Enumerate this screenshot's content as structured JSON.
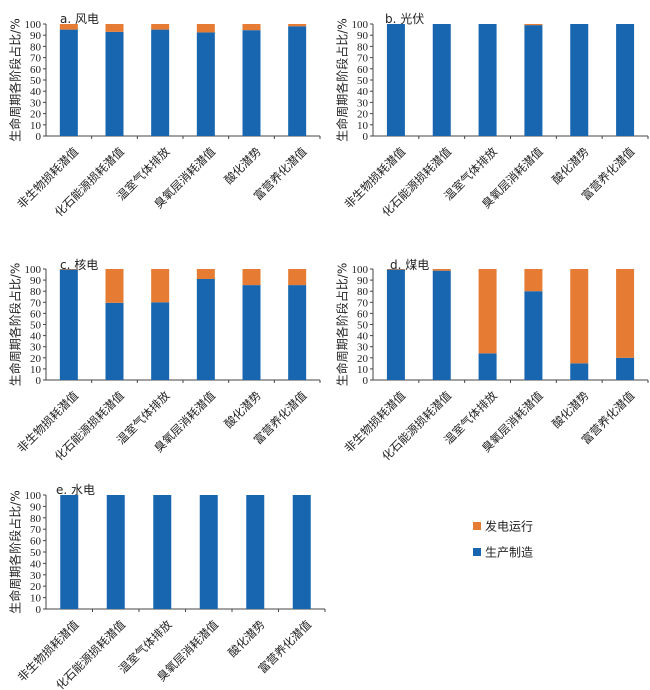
{
  "colors": {
    "production": "#1866b0",
    "operation": "#e67c33",
    "axis": "#444444"
  },
  "legend": [
    {
      "name": "发电运行",
      "color_key": "operation"
    },
    {
      "name": "生产制造",
      "color_key": "production"
    }
  ],
  "chart_data": [
    {
      "type": "bar",
      "stacked": true,
      "title": "a. 风电",
      "ylabel": "生命周期各阶段占比/%",
      "xlabel": "",
      "ylim": [
        0,
        100
      ],
      "yticks": [
        "0",
        "10",
        "20",
        "30",
        "40",
        "50",
        "60",
        "70",
        "80",
        "90",
        "100"
      ],
      "categories": [
        "非生物损耗潜值",
        "化石能源损耗潜值",
        "温室气体排放",
        "臭氧层消耗潜值",
        "酸化潜势",
        "富营养化潜值"
      ],
      "series": [
        {
          "name": "生产制造",
          "values": [
            95,
            93,
            95,
            92.5,
            94.5,
            98
          ]
        },
        {
          "name": "发电运行",
          "values": [
            5,
            7,
            5,
            7.5,
            5.5,
            2
          ]
        }
      ]
    },
    {
      "type": "bar",
      "stacked": true,
      "title": "b. 光伏",
      "ylabel": "生命周期各阶段占比/%",
      "xlabel": "",
      "ylim": [
        0,
        100
      ],
      "yticks": [
        "0",
        "10",
        "20",
        "30",
        "40",
        "50",
        "60",
        "70",
        "80",
        "90",
        "100"
      ],
      "categories": [
        "非生物损耗潜值",
        "化石能源损耗潜值",
        "温室气体排放",
        "臭氧层消耗潜值",
        "酸化潜势",
        "富营养化潜值"
      ],
      "series": [
        {
          "name": "生产制造",
          "values": [
            100,
            100,
            100,
            99,
            100,
            100
          ]
        },
        {
          "name": "发电运行",
          "values": [
            0,
            0,
            0,
            1,
            0,
            0
          ]
        }
      ]
    },
    {
      "type": "bar",
      "stacked": true,
      "title": "c. 核电",
      "ylabel": "生命周期各阶段占比/%",
      "xlabel": "",
      "ylim": [
        0,
        100
      ],
      "yticks": [
        "0",
        "10",
        "20",
        "30",
        "40",
        "50",
        "60",
        "70",
        "80",
        "90",
        "100"
      ],
      "categories": [
        "非生物损耗潜值",
        "化石能源损耗潜值",
        "温室气体排放",
        "臭氧层消耗潜值",
        "酸化潜势",
        "富营养化潜值"
      ],
      "series": [
        {
          "name": "生产制造",
          "values": [
            99.5,
            69.5,
            70,
            91,
            85.5,
            85.5
          ]
        },
        {
          "name": "发电运行",
          "values": [
            0.5,
            30.5,
            30,
            9,
            14.5,
            14.5
          ]
        }
      ]
    },
    {
      "type": "bar",
      "stacked": true,
      "title": "d. 煤电",
      "ylabel": "生命周期各阶段占比/%",
      "xlabel": "",
      "ylim": [
        0,
        100
      ],
      "yticks": [
        "0",
        "10",
        "20",
        "30",
        "40",
        "50",
        "60",
        "70",
        "80",
        "90",
        "100"
      ],
      "categories": [
        "非生物损耗潜值",
        "化石能源损耗潜值",
        "温室气体排放",
        "臭氧层消耗潜值",
        "酸化潜势",
        "富营养化潜值"
      ],
      "series": [
        {
          "name": "生产制造",
          "values": [
            99.5,
            98.5,
            24,
            80,
            15,
            20
          ]
        },
        {
          "name": "发电运行",
          "values": [
            0.5,
            1.5,
            76,
            20,
            85,
            80
          ]
        }
      ]
    },
    {
      "type": "bar",
      "stacked": true,
      "title": "e. 水电",
      "ylabel": "生命周期各阶段占比/%",
      "xlabel": "",
      "ylim": [
        0,
        100
      ],
      "yticks": [
        "0",
        "10",
        "20",
        "30",
        "40",
        "50",
        "60",
        "70",
        "80",
        "90",
        "100"
      ],
      "categories": [
        "非生物损耗潜值",
        "化石能源损耗潜值",
        "温室气体排放",
        "臭氧层消耗潜值",
        "酸化潜势",
        "富营养化潜值"
      ],
      "series": [
        {
          "name": "生产制造",
          "values": [
            100,
            100,
            100,
            100,
            100,
            100
          ]
        },
        {
          "name": "发电运行",
          "values": [
            0,
            0,
            0,
            0,
            0,
            0
          ]
        }
      ]
    }
  ]
}
